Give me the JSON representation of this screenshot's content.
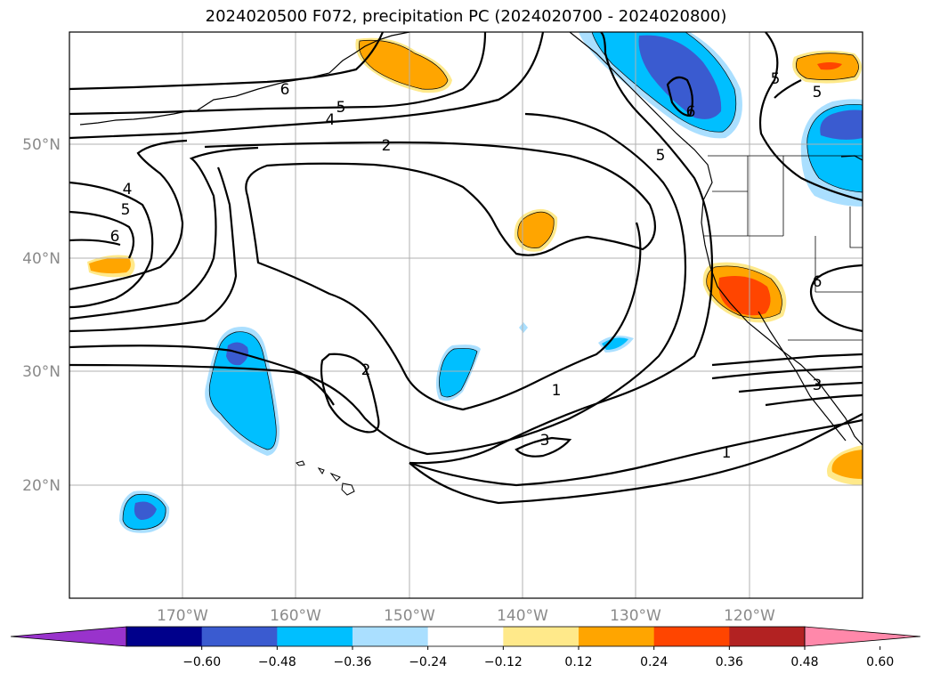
{
  "title": "2024020500 F072, precipitation PC (2024020700 - 2024020800)",
  "lat_labels": [
    "50°N",
    "40°N",
    "30°N",
    "20°N"
  ],
  "lon_labels": [
    "170°W",
    "160°W",
    "150°W",
    "140°W",
    "130°W",
    "120°W"
  ],
  "colorbar": {
    "ticks": [
      "−0.60",
      "−0.48",
      "−0.36",
      "−0.24",
      "−0.12",
      "0.12",
      "0.24",
      "0.36",
      "0.48",
      "0.60"
    ],
    "colors": [
      "#9933cc",
      "#00008b",
      "#3a5bd0",
      "#00bfff",
      "#aadfff",
      "#ffffff",
      "#ffe98a",
      "#ffa500",
      "#ff4500",
      "#b22222",
      "#ff88aa"
    ]
  },
  "contour_labels": [
    "6",
    "5",
    "4",
    "2",
    "4",
    "5",
    "6",
    "5",
    "6",
    "5",
    "5",
    "2",
    "1",
    "3",
    "1",
    "6",
    "3"
  ],
  "colors": {
    "blue_light": "#aadfff",
    "blue": "#00bfff",
    "blue_dark": "#3a5bd0",
    "yellow": "#ffe98a",
    "orange": "#ffa500",
    "red": "#ff4500"
  }
}
